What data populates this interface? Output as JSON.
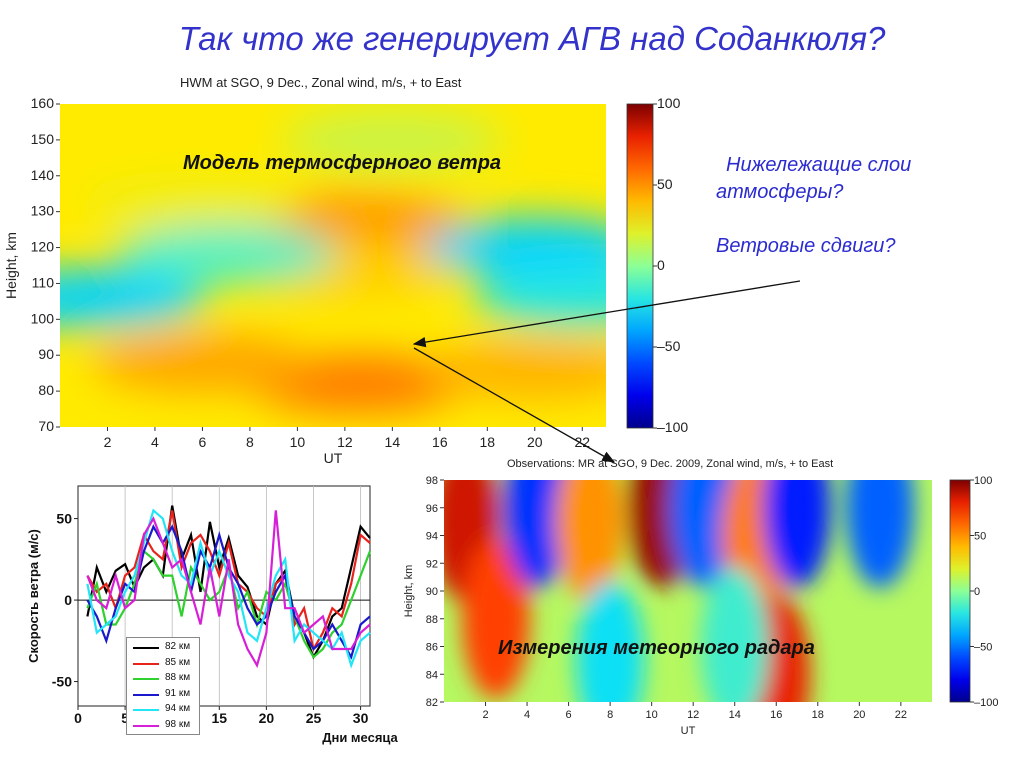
{
  "slide": {
    "title": "Так что же генерирует АГВ над Соданкюля?",
    "annotation_line1": "Нижележащие слои",
    "annotation_line2": "атмосферы?",
    "annotation_line3": "Ветровые сдвиги?"
  },
  "colors": {
    "title_text": "#3333cc",
    "annotation_text": "#2b2bd0",
    "arrow": "#111111"
  },
  "chart_data": [
    {
      "type": "heatmap",
      "title": "HWM at SGO, 9 Dec., Zonal wind, m/s, + to East",
      "overlay_label": "Модель термосферного ветра",
      "xlabel": "UT",
      "ylabel": "Height, km",
      "x_ticks": [
        2,
        4,
        6,
        8,
        10,
        12,
        14,
        16,
        18,
        20,
        22
      ],
      "y_ticks": [
        70,
        80,
        90,
        100,
        110,
        120,
        130,
        140,
        150,
        160
      ],
      "xlim": [
        0,
        23
      ],
      "ylim": [
        70,
        160
      ],
      "colorbar": {
        "ticks": [
          100,
          50,
          0,
          -50,
          -100
        ],
        "range": [
          -100,
          100
        ],
        "colormap": "jet"
      },
      "features": [
        {
          "ut": 12.5,
          "height": 82,
          "value": 55
        },
        {
          "ut": 6,
          "height": 88,
          "value": 45
        },
        {
          "ut": 20,
          "height": 86,
          "value": 42
        },
        {
          "ut": 12.5,
          "height": 127,
          "value": 48
        },
        {
          "ut": 12,
          "height": 114,
          "value": 35
        },
        {
          "ut": 5.5,
          "height": 133,
          "value": 25
        },
        {
          "ut": 20,
          "height": 120,
          "value": -30
        },
        {
          "ut": 22,
          "height": 106,
          "value": -20
        },
        {
          "ut": 1.5,
          "height": 106,
          "value": -30
        },
        {
          "ut": 7,
          "height": 118,
          "value": -12
        },
        {
          "ut": 14,
          "height": 150,
          "value": 15
        }
      ]
    },
    {
      "type": "heatmap",
      "title": "Observations: MR at SGO, 9 Dec. 2009, Zonal wind, m/s, + to East",
      "overlay_label": "Измерения метеорного радара",
      "xlabel": "UT",
      "ylabel": "Height, km",
      "x_ticks": [
        2,
        4,
        6,
        8,
        10,
        12,
        14,
        16,
        18,
        20,
        22
      ],
      "y_ticks": [
        82,
        84,
        86,
        88,
        90,
        92,
        94,
        96,
        98
      ],
      "xlim": [
        0,
        23.5
      ],
      "ylim": [
        82,
        98
      ],
      "colorbar": {
        "ticks": [
          100,
          50,
          0,
          -50,
          -100
        ],
        "range": [
          -100,
          100
        ],
        "colormap": "jet"
      },
      "features": [
        {
          "ut": 1,
          "height": 95,
          "value": 85
        },
        {
          "ut": 2.5,
          "height": 88,
          "value": 70
        },
        {
          "ut": 4.5,
          "height": 96,
          "value": -65
        },
        {
          "ut": 7,
          "height": 95,
          "value": 50
        },
        {
          "ut": 10.5,
          "height": 96,
          "value": 95
        },
        {
          "ut": 12.5,
          "height": 96,
          "value": -55
        },
        {
          "ut": 15,
          "height": 94,
          "value": 55
        },
        {
          "ut": 17,
          "height": 96,
          "value": -70
        },
        {
          "ut": 21,
          "height": 96,
          "value": -55
        },
        {
          "ut": 16,
          "height": 84,
          "value": 80
        },
        {
          "ut": 8,
          "height": 85,
          "value": -25
        },
        {
          "ut": 14,
          "height": 86,
          "value": -15
        }
      ]
    },
    {
      "type": "line",
      "xlabel": "Дни месяца",
      "ylabel": "Скорость ветра  (м/с)",
      "x_ticks": [
        0,
        5,
        10,
        15,
        20,
        25,
        30
      ],
      "y_ticks": [
        50,
        0,
        -50
      ],
      "xlim": [
        0,
        31
      ],
      "ylim": [
        -65,
        70
      ],
      "x": [
        1,
        2,
        3,
        4,
        5,
        6,
        7,
        8,
        9,
        10,
        11,
        12,
        13,
        14,
        15,
        16,
        17,
        18,
        19,
        20,
        21,
        22,
        23,
        24,
        25,
        26,
        27,
        28,
        29,
        30,
        31
      ],
      "series": [
        {
          "name": "82 км",
          "color": "#000000",
          "values": [
            -10,
            20,
            5,
            18,
            22,
            8,
            20,
            25,
            15,
            58,
            25,
            40,
            5,
            48,
            20,
            38,
            15,
            8,
            -10,
            -15,
            10,
            18,
            -10,
            -20,
            -35,
            -25,
            -10,
            -5,
            20,
            45,
            38
          ]
        },
        {
          "name": "85 км",
          "color": "#e8231c",
          "values": [
            15,
            5,
            10,
            -5,
            15,
            20,
            40,
            30,
            25,
            55,
            20,
            35,
            40,
            30,
            15,
            35,
            10,
            5,
            -5,
            -10,
            10,
            15,
            -15,
            -5,
            -30,
            -20,
            -5,
            -10,
            10,
            40,
            35
          ]
        },
        {
          "name": "88 км",
          "color": "#2ed12e",
          "values": [
            -5,
            10,
            -15,
            -15,
            -5,
            10,
            30,
            25,
            15,
            15,
            -10,
            20,
            10,
            0,
            5,
            20,
            -5,
            5,
            -15,
            5,
            0,
            10,
            -10,
            -25,
            -35,
            -30,
            -20,
            -15,
            0,
            15,
            30
          ]
        },
        {
          "name": "91 км",
          "color": "#1a1acc",
          "values": [
            0,
            -10,
            -25,
            -5,
            10,
            5,
            30,
            45,
            35,
            45,
            30,
            5,
            30,
            20,
            40,
            20,
            10,
            -5,
            -15,
            -10,
            5,
            15,
            -10,
            -20,
            -30,
            -25,
            -15,
            -25,
            -35,
            -15,
            -10
          ]
        },
        {
          "name": "94 км",
          "color": "#22e5f5",
          "values": [
            10,
            -20,
            -15,
            -10,
            5,
            15,
            35,
            55,
            50,
            30,
            15,
            10,
            35,
            15,
            30,
            15,
            5,
            -20,
            -25,
            -5,
            15,
            25,
            -25,
            -15,
            -20,
            -25,
            -30,
            -20,
            -40,
            -25,
            -20
          ]
        },
        {
          "name": "98 км",
          "color": "#d61fd6",
          "values": [
            15,
            0,
            -5,
            15,
            -5,
            0,
            40,
            50,
            35,
            20,
            25,
            5,
            -15,
            20,
            -10,
            25,
            -15,
            -30,
            -40,
            -20,
            55,
            -5,
            -5,
            -20,
            -15,
            -10,
            -30,
            -30,
            -30,
            -20,
            -15
          ]
        }
      ]
    }
  ]
}
